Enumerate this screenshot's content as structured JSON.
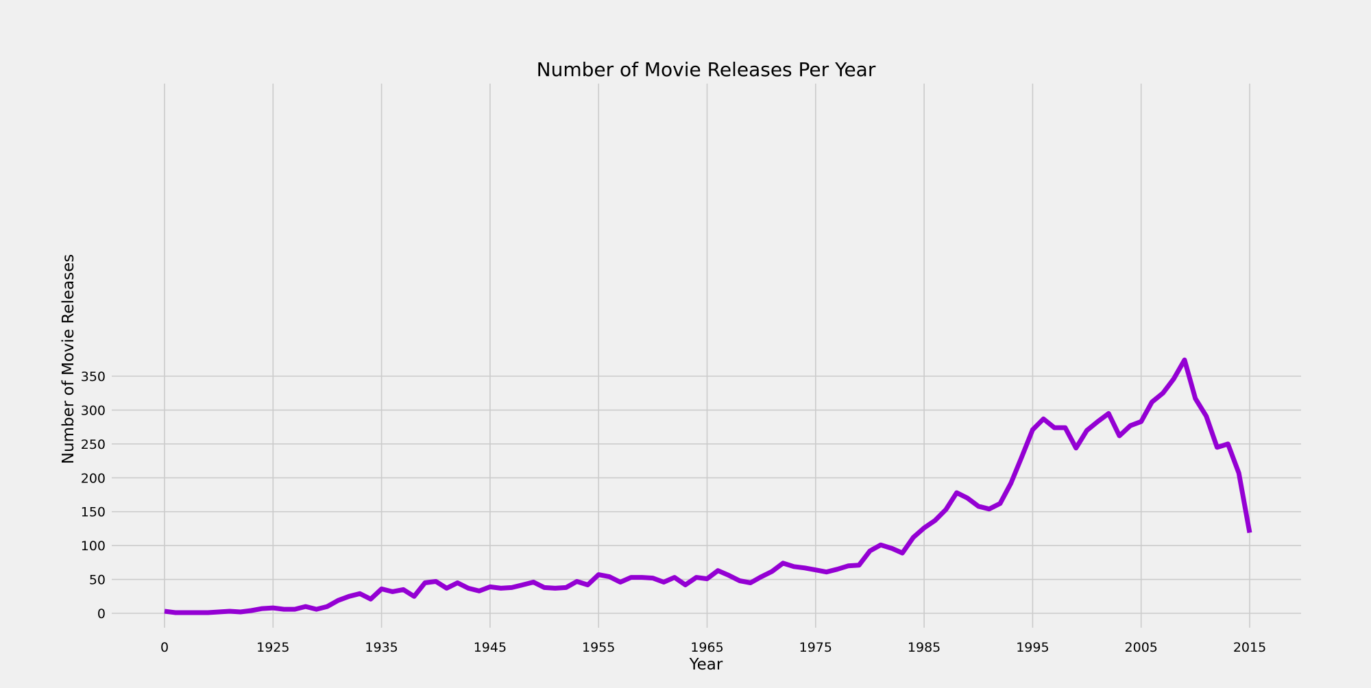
{
  "chart_data": {
    "type": "line",
    "title": "Number of Movie Releases Per Year",
    "xlabel": "Year",
    "ylabel": "Number of Movie Releases",
    "xtick_labels": [
      "0",
      "1925",
      "1935",
      "1945",
      "1955",
      "1965",
      "1975",
      "1985",
      "1995",
      "2005",
      "2015"
    ],
    "ytick_labels": [
      "0",
      "50",
      "100",
      "150",
      "200",
      "250",
      "300",
      "350"
    ],
    "ylim": [
      -15,
      392
    ],
    "grid": true,
    "line_color": "#9400d3",
    "series": [
      {
        "x": [
          1915,
          1916,
          1917,
          1918,
          1919,
          1920,
          1921,
          1922,
          1923,
          1924,
          1925,
          1926,
          1927,
          1928,
          1929,
          1930,
          1931,
          1932,
          1933,
          1934,
          1935,
          1936,
          1937,
          1938,
          1939,
          1940,
          1941,
          1942,
          1943,
          1944,
          1945,
          1946,
          1947,
          1948,
          1949,
          1950,
          1951,
          1952,
          1953,
          1954,
          1955,
          1956,
          1957,
          1958,
          1959,
          1960,
          1961,
          1962,
          1963,
          1964,
          1965,
          1966,
          1967,
          1968,
          1969,
          1970,
          1971,
          1972,
          1973,
          1974,
          1975,
          1976,
          1977,
          1978,
          1979,
          1980,
          1981,
          1982,
          1983,
          1984,
          1985,
          1986,
          1987,
          1988,
          1989,
          1990,
          1991,
          1992,
          1993,
          1994,
          1995,
          1996,
          1997,
          1998,
          1999,
          2000,
          2001,
          2002,
          2003,
          2004,
          2005,
          2006,
          2007,
          2008,
          2009,
          2010,
          2011,
          2012,
          2013,
          2014,
          2015
        ],
        "y": [
          3,
          1,
          1,
          1,
          1,
          2,
          3,
          2,
          4,
          7,
          8,
          6,
          6,
          10,
          6,
          10,
          19,
          25,
          29,
          21,
          36,
          32,
          35,
          25,
          45,
          47,
          37,
          45,
          37,
          33,
          39,
          37,
          38,
          42,
          46,
          38,
          37,
          38,
          47,
          42,
          57,
          54,
          46,
          53,
          53,
          52,
          46,
          53,
          42,
          53,
          51,
          63,
          56,
          48,
          45,
          54,
          62,
          74,
          69,
          67,
          64,
          61,
          65,
          70,
          71,
          92,
          101,
          96,
          89,
          112,
          126,
          137,
          153,
          178,
          170,
          158,
          154,
          162,
          192,
          231,
          271,
          287,
          274,
          274,
          244,
          270,
          283,
          295,
          262,
          277,
          283,
          312,
          325,
          346,
          374,
          317,
          291,
          245,
          250,
          207,
          119
        ]
      }
    ]
  }
}
